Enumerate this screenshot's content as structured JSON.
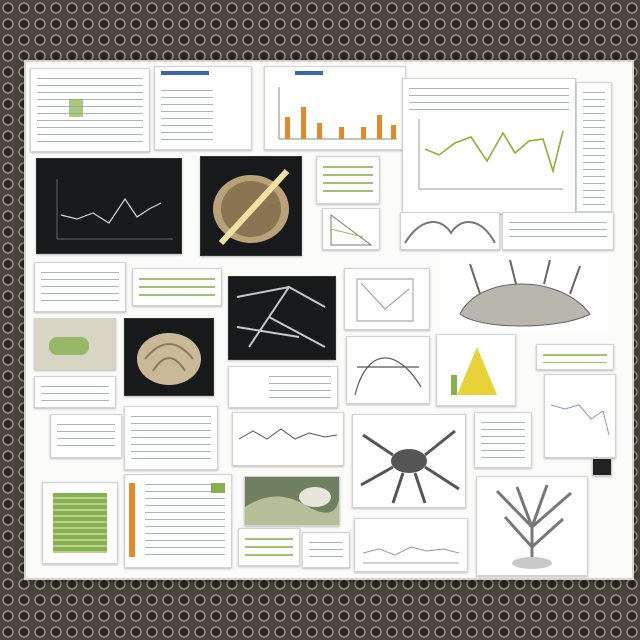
{
  "collage": {
    "title": "",
    "tiles": [
      {
        "name": "doc-table-top-left",
        "kind": "document"
      },
      {
        "name": "doc-bars-top",
        "kind": "document"
      },
      {
        "name": "orange-bar-chart",
        "kind": "chart"
      },
      {
        "name": "green-line-chart",
        "kind": "chart"
      },
      {
        "name": "dark-line-chart",
        "kind": "chart"
      },
      {
        "name": "wood-specimen-photo",
        "kind": "photo"
      },
      {
        "name": "green-data-table",
        "kind": "document"
      },
      {
        "name": "triangle-diagram",
        "kind": "diagram"
      },
      {
        "name": "fiber-sketch-photo",
        "kind": "photo"
      },
      {
        "name": "network-sketch-dark",
        "kind": "diagram"
      },
      {
        "name": "root-structure-drawing",
        "kind": "diagram"
      },
      {
        "name": "shell-specimen-photo",
        "kind": "photo"
      },
      {
        "name": "yellow-cone-diagram",
        "kind": "diagram"
      },
      {
        "name": "spider-drawing",
        "kind": "diagram"
      },
      {
        "name": "tree-root-drawing",
        "kind": "diagram"
      },
      {
        "name": "green-grid-sheet",
        "kind": "document"
      },
      {
        "name": "landscape-photo",
        "kind": "photo"
      }
    ]
  },
  "colors": {
    "frame": "#4a443d",
    "board": "#fbfbf9",
    "accent_blue": "#3f64a8",
    "accent_green": "#86b04d",
    "accent_orange": "#e08a2c",
    "line_green": "#8fae3a"
  }
}
